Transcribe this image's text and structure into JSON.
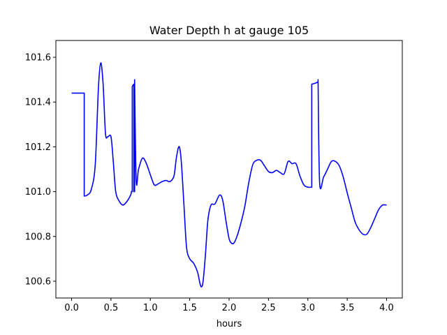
{
  "chart_data": {
    "type": "line",
    "title": "Water Depth h at gauge 105",
    "xlabel": "hours",
    "ylabel": "",
    "xlim": [
      -0.2,
      4.2
    ],
    "ylim": [
      100.525,
      101.675
    ],
    "xticks": [
      0.0,
      0.5,
      1.0,
      1.5,
      2.0,
      2.5,
      3.0,
      3.5,
      4.0
    ],
    "xtick_labels": [
      "0.0",
      "0.5",
      "1.0",
      "1.5",
      "2.0",
      "2.5",
      "3.0",
      "3.5",
      "4.0"
    ],
    "yticks": [
      100.6,
      100.8,
      101.0,
      101.2,
      101.4,
      101.6
    ],
    "ytick_labels": [
      "100.6",
      "100.8",
      "101.0",
      "101.2",
      "101.4",
      "101.6"
    ],
    "grid": false,
    "colors": {
      "line": "#0000ff",
      "axes": "#000000",
      "background": "#ffffff"
    },
    "series": [
      {
        "x": [
          0.0,
          0.16,
          0.16,
          0.2,
          0.25,
          0.3,
          0.34,
          0.37,
          0.4,
          0.43,
          0.46,
          0.5,
          0.53,
          0.56,
          0.6,
          0.65,
          0.7,
          0.75,
          0.76,
          0.77,
          0.77,
          0.79,
          0.79,
          0.8,
          0.8,
          0.82,
          0.85,
          0.9,
          0.95,
          1.0,
          1.05,
          1.1,
          1.15,
          1.2,
          1.25,
          1.3,
          1.33,
          1.36,
          1.38,
          1.4,
          1.43,
          1.46,
          1.5,
          1.55,
          1.6,
          1.63,
          1.65,
          1.67,
          1.7,
          1.73,
          1.77,
          1.82,
          1.88,
          1.92,
          1.96,
          2.0,
          2.03,
          2.06,
          2.1,
          2.15,
          2.2,
          2.25,
          2.3,
          2.35,
          2.4,
          2.45,
          2.5,
          2.55,
          2.6,
          2.65,
          2.7,
          2.75,
          2.8,
          2.85,
          2.9,
          2.95,
          3.0,
          3.05,
          3.05,
          3.1,
          3.13,
          3.13,
          3.15,
          3.2,
          3.25,
          3.3,
          3.35,
          3.4,
          3.45,
          3.5,
          3.55,
          3.6,
          3.65,
          3.7,
          3.75,
          3.8,
          3.85,
          3.9,
          3.95,
          4.0
        ],
        "y": [
          101.44,
          101.44,
          100.98,
          100.985,
          101.01,
          101.12,
          101.46,
          101.575,
          101.48,
          101.26,
          101.245,
          101.245,
          101.13,
          101.0,
          100.96,
          100.94,
          100.955,
          100.985,
          101.0,
          101.0,
          101.47,
          101.48,
          101.0,
          101.0,
          101.5,
          101.05,
          101.1,
          101.15,
          101.125,
          101.075,
          101.03,
          101.035,
          101.045,
          101.05,
          101.045,
          101.07,
          101.15,
          101.2,
          101.18,
          101.1,
          100.92,
          100.75,
          100.7,
          100.68,
          100.64,
          100.59,
          100.575,
          100.6,
          100.72,
          100.87,
          100.94,
          100.945,
          100.985,
          100.96,
          100.87,
          100.79,
          100.77,
          100.77,
          100.8,
          100.86,
          100.935,
          101.04,
          101.12,
          101.14,
          101.14,
          101.115,
          101.09,
          101.085,
          101.095,
          101.085,
          101.08,
          101.135,
          101.125,
          101.125,
          101.07,
          101.03,
          101.02,
          101.02,
          101.48,
          101.485,
          101.49,
          101.5,
          101.04,
          101.065,
          101.1,
          101.135,
          101.135,
          101.115,
          101.065,
          100.995,
          100.93,
          100.865,
          100.83,
          100.81,
          100.81,
          100.84,
          100.88,
          100.92,
          100.94,
          100.94
        ]
      }
    ]
  }
}
